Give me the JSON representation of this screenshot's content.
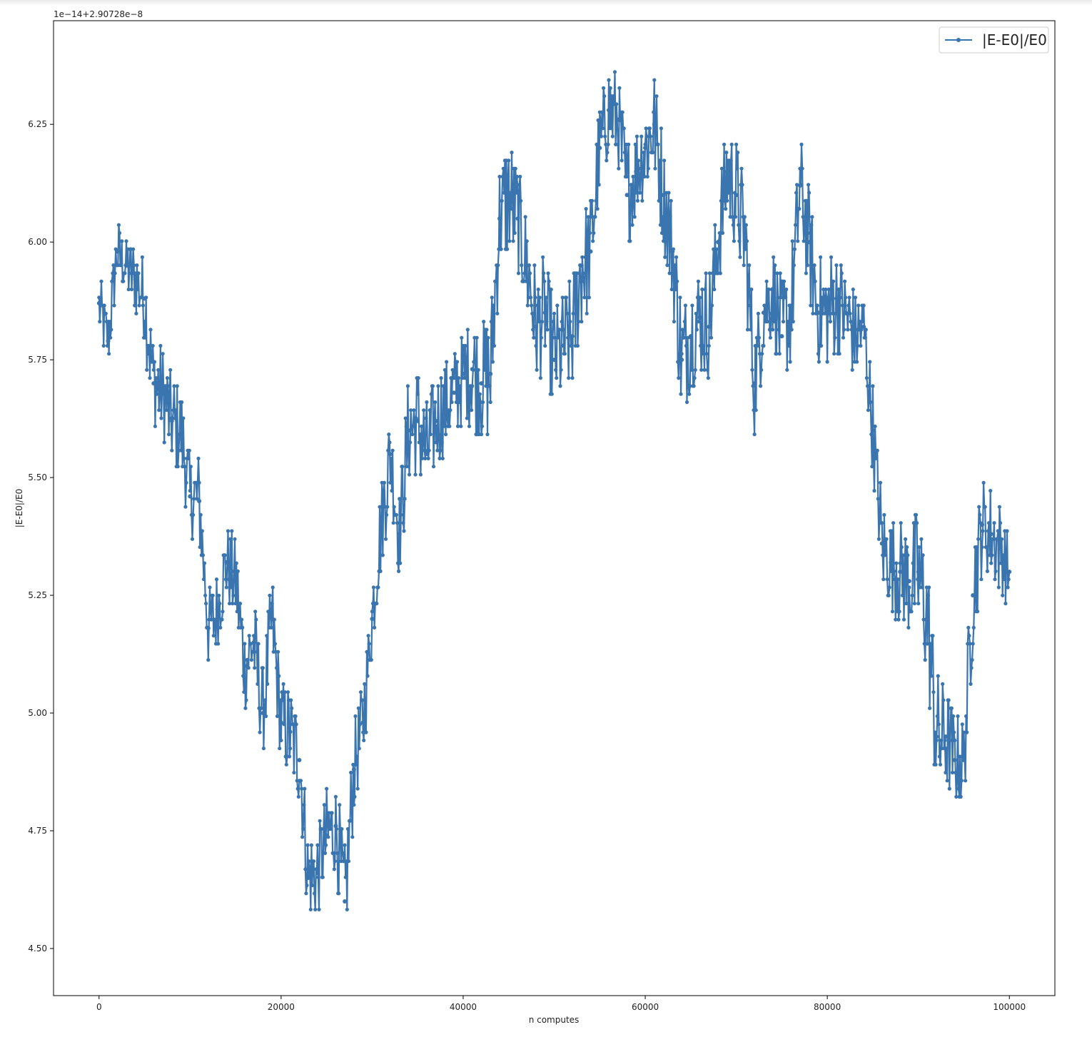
{
  "chart_data": {
    "type": "line",
    "title": "",
    "xlabel": "n computes",
    "ylabel": "|E-E0|/E0",
    "offset_text": "1e−14+2.90728e−8",
    "xlim": [
      -5000,
      105000
    ],
    "ylim": [
      4.4,
      6.47
    ],
    "xticks": [
      0,
      20000,
      40000,
      60000,
      80000,
      100000
    ],
    "xtick_labels": [
      "0",
      "20000",
      "40000",
      "60000",
      "80000",
      "100000"
    ],
    "yticks": [
      4.5,
      4.75,
      5.0,
      5.25,
      5.5,
      5.75,
      6.0,
      6.25
    ],
    "ytick_labels": [
      "4.50",
      "4.75",
      "5.00",
      "5.25",
      "5.50",
      "5.75",
      "6.00",
      "6.25"
    ],
    "grid": false,
    "legend_position": "top-right",
    "series": [
      {
        "name": "|E-E0|/E0",
        "color": "#3a75af",
        "marker": "circle",
        "x": [
          0,
          1000,
          2000,
          3000,
          4000,
          5000,
          6000,
          7000,
          8000,
          9000,
          10000,
          11000,
          12000,
          13000,
          14000,
          15000,
          16000,
          17000,
          18000,
          19000,
          20000,
          21000,
          22000,
          23000,
          24000,
          25000,
          26000,
          27000,
          28000,
          29000,
          30000,
          31000,
          32000,
          33000,
          34000,
          35000,
          36000,
          37000,
          38000,
          39000,
          40000,
          41000,
          42000,
          43000,
          44000,
          45000,
          46000,
          47000,
          48000,
          49000,
          50000,
          51000,
          52000,
          53000,
          54000,
          55000,
          56000,
          57000,
          58000,
          59000,
          60000,
          61000,
          62000,
          63000,
          64000,
          65000,
          66000,
          67000,
          68000,
          69000,
          70000,
          71000,
          72000,
          73000,
          74000,
          75000,
          76000,
          77000,
          78000,
          79000,
          80000,
          81000,
          82000,
          83000,
          84000,
          85000,
          86000,
          87000,
          88000,
          89000,
          90000,
          91000,
          92000,
          93000,
          94000,
          95000,
          96000,
          97000,
          98000,
          99000,
          100000
        ],
        "y": [
          5.87,
          5.79,
          5.98,
          5.95,
          5.92,
          5.88,
          5.7,
          5.68,
          5.62,
          5.6,
          5.46,
          5.45,
          5.18,
          5.22,
          5.32,
          5.28,
          5.1,
          5.15,
          5.0,
          5.2,
          4.98,
          4.96,
          4.9,
          4.65,
          4.66,
          4.74,
          4.76,
          4.6,
          4.88,
          4.98,
          5.2,
          5.4,
          5.55,
          5.38,
          5.6,
          5.62,
          5.55,
          5.62,
          5.65,
          5.68,
          5.72,
          5.73,
          5.7,
          5.72,
          6.05,
          6.1,
          6.05,
          5.95,
          5.82,
          5.85,
          5.75,
          5.78,
          5.8,
          5.95,
          5.98,
          6.2,
          6.28,
          6.26,
          6.1,
          6.15,
          6.2,
          6.25,
          6.1,
          5.98,
          5.75,
          5.8,
          5.84,
          5.82,
          6.0,
          6.15,
          6.1,
          6.0,
          5.7,
          5.85,
          5.9,
          5.8,
          5.85,
          6.12,
          6.0,
          5.85,
          5.85,
          5.88,
          5.85,
          5.8,
          5.82,
          5.6,
          5.36,
          5.32,
          5.3,
          5.28,
          5.3,
          5.2,
          4.95,
          4.95,
          4.9,
          4.9,
          5.25,
          5.4,
          5.38,
          5.35,
          5.3
        ],
        "band_half_width": [
          0.06,
          0.07,
          0.07,
          0.06,
          0.08,
          0.1,
          0.1,
          0.1,
          0.1,
          0.1,
          0.08,
          0.1,
          0.08,
          0.09,
          0.09,
          0.1,
          0.1,
          0.1,
          0.1,
          0.1,
          0.1,
          0.1,
          0.1,
          0.1,
          0.1,
          0.1,
          0.1,
          0.12,
          0.1,
          0.1,
          0.08,
          0.1,
          0.1,
          0.1,
          0.12,
          0.12,
          0.12,
          0.1,
          0.1,
          0.1,
          0.1,
          0.12,
          0.12,
          0.14,
          0.12,
          0.14,
          0.12,
          0.12,
          0.12,
          0.12,
          0.12,
          0.12,
          0.12,
          0.14,
          0.12,
          0.1,
          0.1,
          0.1,
          0.12,
          0.1,
          0.1,
          0.12,
          0.12,
          0.12,
          0.14,
          0.12,
          0.12,
          0.12,
          0.1,
          0.12,
          0.12,
          0.12,
          0.12,
          0.1,
          0.1,
          0.12,
          0.12,
          0.12,
          0.12,
          0.12,
          0.12,
          0.12,
          0.1,
          0.1,
          0.08,
          0.1,
          0.1,
          0.1,
          0.12,
          0.12,
          0.14,
          0.14,
          0.14,
          0.12,
          0.1,
          0.1,
          0.12,
          0.1,
          0.1,
          0.1,
          0.08
        ]
      }
    ]
  }
}
